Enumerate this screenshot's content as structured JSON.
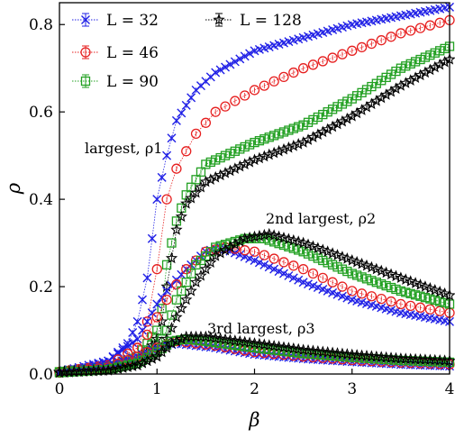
{
  "chart_data": {
    "type": "scatter",
    "xlabel": "β",
    "ylabel": "ρ",
    "xlim": [
      0,
      4
    ],
    "ylim": [
      0,
      0.85
    ],
    "x_ticks": [
      0,
      1,
      2,
      3,
      4
    ],
    "x_tick_labels": [
      "0",
      "1",
      "2",
      "3",
      "4"
    ],
    "y_ticks": [
      0.0,
      0.2,
      0.4,
      0.6,
      0.8
    ],
    "y_tick_labels": [
      "0.0",
      "0.2",
      "0.4",
      "0.6",
      "0.8"
    ],
    "grid": false,
    "legend_placement": "top-left",
    "legend": [
      {
        "label": "L = 32",
        "color": "#1f1fe6",
        "marker": "x"
      },
      {
        "label": "L = 46",
        "color": "#e61f1f",
        "marker": "circle"
      },
      {
        "label": "L = 90",
        "color": "#22a022",
        "marker": "square"
      },
      {
        "label": "L = 128",
        "color": "#000000",
        "marker": "star"
      }
    ],
    "annotations": [
      "largest, ρ1",
      "2nd largest, ρ2",
      "3rd largest, ρ3"
    ],
    "series": [
      {
        "name": "L = 32",
        "group": "largest, ρ1",
        "color": "#1f1fe6",
        "marker": "x",
        "step": 0.05,
        "x": [
          0.0,
          0.3,
          0.5,
          0.7,
          0.8,
          0.9,
          1.0,
          1.1,
          1.2,
          1.4,
          1.6,
          2.0,
          2.5,
          3.0,
          3.5,
          4.0
        ],
        "y": [
          0.005,
          0.015,
          0.03,
          0.07,
          0.12,
          0.22,
          0.4,
          0.5,
          0.58,
          0.65,
          0.69,
          0.74,
          0.77,
          0.8,
          0.82,
          0.84
        ]
      },
      {
        "name": "L = 46",
        "group": "largest, ρ1",
        "color": "#e61f1f",
        "marker": "circle",
        "step": 0.1,
        "x": [
          0.0,
          0.5,
          0.8,
          0.9,
          1.0,
          1.1,
          1.2,
          1.4,
          1.6,
          2.0,
          2.5,
          3.0,
          3.5,
          4.0
        ],
        "y": [
          0.005,
          0.02,
          0.06,
          0.12,
          0.24,
          0.4,
          0.47,
          0.55,
          0.6,
          0.65,
          0.7,
          0.74,
          0.78,
          0.81
        ]
      },
      {
        "name": "L = 90",
        "group": "largest, ρ1",
        "color": "#22a022",
        "marker": "square",
        "step": 0.05,
        "x": [
          0.0,
          0.5,
          0.8,
          0.9,
          1.0,
          1.05,
          1.1,
          1.2,
          1.3,
          1.5,
          2.0,
          2.5,
          3.0,
          3.5,
          4.0
        ],
        "y": [
          0.005,
          0.015,
          0.04,
          0.07,
          0.1,
          0.15,
          0.25,
          0.35,
          0.41,
          0.48,
          0.53,
          0.57,
          0.63,
          0.7,
          0.75
        ]
      },
      {
        "name": "L = 128",
        "group": "largest, ρ1",
        "color": "#000000",
        "marker": "star",
        "step": 0.05,
        "x": [
          0.0,
          0.5,
          0.8,
          0.9,
          1.0,
          1.05,
          1.1,
          1.2,
          1.3,
          1.5,
          2.0,
          2.5,
          3.0,
          3.5,
          4.0
        ],
        "y": [
          0.005,
          0.015,
          0.03,
          0.05,
          0.08,
          0.12,
          0.2,
          0.33,
          0.39,
          0.44,
          0.49,
          0.53,
          0.59,
          0.66,
          0.72
        ]
      },
      {
        "name": "L = 32",
        "group": "2nd largest, ρ2",
        "color": "#1f1fe6",
        "marker": "x",
        "step": 0.05,
        "x": [
          0.0,
          0.5,
          0.8,
          0.9,
          1.0,
          1.1,
          1.3,
          1.5,
          1.65,
          2.0,
          2.5,
          3.0,
          3.5,
          4.0
        ],
        "y": [
          0.005,
          0.03,
          0.08,
          0.12,
          0.16,
          0.19,
          0.24,
          0.28,
          0.29,
          0.26,
          0.21,
          0.17,
          0.14,
          0.12
        ]
      },
      {
        "name": "L = 46",
        "group": "2nd largest, ρ2",
        "color": "#e61f1f",
        "marker": "circle",
        "step": 0.1,
        "x": [
          0.0,
          0.5,
          0.8,
          0.9,
          1.0,
          1.1,
          1.3,
          1.5,
          1.7,
          2.0,
          2.5,
          3.0,
          3.5,
          4.0
        ],
        "y": [
          0.005,
          0.02,
          0.06,
          0.09,
          0.13,
          0.17,
          0.24,
          0.28,
          0.29,
          0.28,
          0.24,
          0.19,
          0.16,
          0.14
        ]
      },
      {
        "name": "L = 90",
        "group": "2nd largest, ρ2",
        "color": "#22a022",
        "marker": "square",
        "step": 0.05,
        "x": [
          0.0,
          0.5,
          0.8,
          1.0,
          1.1,
          1.2,
          1.4,
          1.6,
          1.9,
          2.1,
          2.5,
          3.0,
          3.5,
          4.0
        ],
        "y": [
          0.005,
          0.015,
          0.03,
          0.06,
          0.1,
          0.17,
          0.25,
          0.29,
          0.31,
          0.31,
          0.28,
          0.23,
          0.19,
          0.16
        ]
      },
      {
        "name": "L = 128",
        "group": "2nd largest, ρ2",
        "color": "#000000",
        "marker": "star",
        "step": 0.05,
        "x": [
          0.0,
          0.5,
          0.8,
          1.0,
          1.1,
          1.2,
          1.4,
          1.6,
          1.9,
          2.15,
          2.5,
          3.0,
          3.5,
          4.0
        ],
        "y": [
          0.005,
          0.01,
          0.02,
          0.04,
          0.08,
          0.13,
          0.21,
          0.27,
          0.31,
          0.32,
          0.3,
          0.26,
          0.22,
          0.18
        ]
      },
      {
        "name": "L = 32",
        "group": "3rd largest, ρ3",
        "color": "#1f1fe6",
        "marker": "x",
        "step": 0.05,
        "x": [
          0.0,
          0.5,
          0.8,
          1.0,
          1.2,
          1.4,
          1.6,
          2.0,
          2.5,
          3.0,
          3.5,
          4.0
        ],
        "y": [
          0.003,
          0.02,
          0.04,
          0.06,
          0.07,
          0.065,
          0.06,
          0.045,
          0.035,
          0.028,
          0.022,
          0.018
        ]
      },
      {
        "name": "L = 46",
        "group": "3rd largest, ρ3",
        "color": "#e61f1f",
        "marker": "circle",
        "step": 0.1,
        "x": [
          0.0,
          0.5,
          0.8,
          1.0,
          1.2,
          1.4,
          1.6,
          2.0,
          2.5,
          3.0,
          3.5,
          4.0
        ],
        "y": [
          0.003,
          0.015,
          0.04,
          0.06,
          0.075,
          0.07,
          0.065,
          0.05,
          0.04,
          0.032,
          0.026,
          0.022
        ]
      },
      {
        "name": "L = 90",
        "group": "3rd largest, ρ3",
        "color": "#22a022",
        "marker": "square",
        "step": 0.05,
        "x": [
          0.0,
          0.5,
          0.8,
          1.0,
          1.15,
          1.3,
          1.5,
          2.0,
          2.5,
          3.0,
          3.5,
          4.0
        ],
        "y": [
          0.003,
          0.01,
          0.025,
          0.05,
          0.075,
          0.08,
          0.075,
          0.06,
          0.047,
          0.038,
          0.031,
          0.027
        ]
      },
      {
        "name": "L = 128",
        "group": "3rd largest, ρ3",
        "color": "#000000",
        "marker": "star",
        "step": 0.05,
        "x": [
          0.0,
          0.5,
          0.8,
          1.0,
          1.15,
          1.3,
          1.5,
          2.0,
          2.5,
          3.0,
          3.5,
          4.0
        ],
        "y": [
          0.003,
          0.008,
          0.02,
          0.04,
          0.07,
          0.085,
          0.085,
          0.07,
          0.055,
          0.044,
          0.035,
          0.03
        ]
      }
    ]
  }
}
